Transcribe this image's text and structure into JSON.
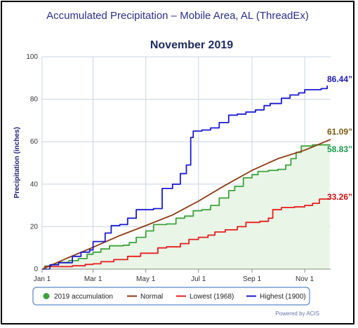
{
  "chart_data": {
    "type": "line",
    "title": "Accumulated Precipitation – Mobile Area, AL (ThreadEx)",
    "subtitle": "November 2019",
    "ylabel": "Precipitation (inches)",
    "xlabel": "",
    "ylim": [
      0,
      100
    ],
    "yticks": [
      "0",
      "20",
      "40",
      "60",
      "80",
      "100"
    ],
    "xticks": [
      "Jan 1",
      "Mar 1",
      "May 1",
      "Jul 1",
      "Sep 1",
      "Nov 1"
    ],
    "grid": true,
    "legend_position": "bottom",
    "credits": "Powered by ACIS",
    "series": [
      {
        "name": "2019 accumulation",
        "color": "#3aa33a",
        "fill": "#e9f5e6",
        "step": true,
        "end_label": "58.83”",
        "end_label_color": "#1a9a4a",
        "points": [
          [
            "2019-01-01",
            0
          ],
          [
            "2019-01-04",
            1.5
          ],
          [
            "2019-01-12",
            2.2
          ],
          [
            "2019-01-20",
            3.2
          ],
          [
            "2019-02-01",
            4.0
          ],
          [
            "2019-02-12",
            5.0
          ],
          [
            "2019-02-22",
            7.0
          ],
          [
            "2019-03-01",
            8.0
          ],
          [
            "2019-03-10",
            9.5
          ],
          [
            "2019-03-20",
            11.0
          ],
          [
            "2019-04-05",
            11.3
          ],
          [
            "2019-04-12",
            12.5
          ],
          [
            "2019-04-20",
            15.0
          ],
          [
            "2019-05-01",
            18.0
          ],
          [
            "2019-05-10",
            21.0
          ],
          [
            "2019-05-25",
            21.3
          ],
          [
            "2019-06-05",
            24.0
          ],
          [
            "2019-06-15",
            25.0
          ],
          [
            "2019-06-25",
            27.5
          ],
          [
            "2019-07-05",
            28.0
          ],
          [
            "2019-07-15",
            30.0
          ],
          [
            "2019-07-25",
            33.5
          ],
          [
            "2019-08-05",
            37.0
          ],
          [
            "2019-08-12",
            39.0
          ],
          [
            "2019-08-22",
            43.0
          ],
          [
            "2019-09-01",
            44.5
          ],
          [
            "2019-09-08",
            46.0
          ],
          [
            "2019-09-20",
            46.5
          ],
          [
            "2019-10-01",
            47.0
          ],
          [
            "2019-10-10",
            49.0
          ],
          [
            "2019-10-16",
            52.0
          ],
          [
            "2019-10-22",
            55.0
          ],
          [
            "2019-10-28",
            58.0
          ],
          [
            "2019-11-10",
            58.5
          ],
          [
            "2019-11-30",
            58.83
          ]
        ]
      },
      {
        "name": "Normal",
        "color": "#8b3a10",
        "fill": "none",
        "step": false,
        "end_label": "61.09”",
        "end_label_color": "#7a5a10",
        "points": [
          [
            "2019-01-01",
            0
          ],
          [
            "2019-02-01",
            5.5
          ],
          [
            "2019-03-01",
            10.3
          ],
          [
            "2019-04-01",
            15.8
          ],
          [
            "2019-05-01",
            20.5
          ],
          [
            "2019-06-01",
            25.5
          ],
          [
            "2019-07-01",
            32.0
          ],
          [
            "2019-08-01",
            39.5
          ],
          [
            "2019-09-01",
            46.5
          ],
          [
            "2019-10-01",
            52.0
          ],
          [
            "2019-11-01",
            56.0
          ],
          [
            "2019-12-01",
            61.09
          ]
        ]
      },
      {
        "name": "Lowest (1968)",
        "color": "#e81d1d",
        "fill": "none",
        "step": true,
        "end_label": "33.26”",
        "end_label_color": "#d01010",
        "points": [
          [
            "2019-01-01",
            0
          ],
          [
            "2019-01-05",
            1.2
          ],
          [
            "2019-02-05",
            1.6
          ],
          [
            "2019-02-20",
            2.2
          ],
          [
            "2019-03-01",
            2.5
          ],
          [
            "2019-03-10",
            3.5
          ],
          [
            "2019-03-25",
            4.5
          ],
          [
            "2019-04-10",
            6.0
          ],
          [
            "2019-04-25",
            7.5
          ],
          [
            "2019-05-15",
            10.0
          ],
          [
            "2019-05-25",
            10.5
          ],
          [
            "2019-06-10",
            12.0
          ],
          [
            "2019-06-20",
            14.0
          ],
          [
            "2019-07-01",
            15.0
          ],
          [
            "2019-07-12",
            16.0
          ],
          [
            "2019-07-20",
            17.5
          ],
          [
            "2019-08-01",
            18.5
          ],
          [
            "2019-08-15",
            20.0
          ],
          [
            "2019-08-25",
            22.0
          ],
          [
            "2019-09-10",
            22.5
          ],
          [
            "2019-09-20",
            24.0
          ],
          [
            "2019-09-25",
            28.0
          ],
          [
            "2019-10-05",
            29.0
          ],
          [
            "2019-10-20",
            29.3
          ],
          [
            "2019-11-01",
            30.0
          ],
          [
            "2019-11-10",
            31.0
          ],
          [
            "2019-11-18",
            33.0
          ],
          [
            "2019-11-30",
            33.26
          ]
        ]
      },
      {
        "name": "Highest (1900)",
        "color": "#1a1ad6",
        "fill": "none",
        "step": true,
        "end_label": "86.44”",
        "end_label_color": "#1a1ab8",
        "points": [
          [
            "2019-01-01",
            0
          ],
          [
            "2019-01-10",
            2.0
          ],
          [
            "2019-01-20",
            3.0
          ],
          [
            "2019-02-05",
            6.0
          ],
          [
            "2019-02-15",
            8.0
          ],
          [
            "2019-02-25",
            9.0
          ],
          [
            "2019-03-01",
            13.0
          ],
          [
            "2019-03-15",
            17.0
          ],
          [
            "2019-03-22",
            20.5
          ],
          [
            "2019-04-01",
            21.0
          ],
          [
            "2019-04-10",
            24.0
          ],
          [
            "2019-04-20",
            28.0
          ],
          [
            "2019-05-10",
            28.5
          ],
          [
            "2019-05-20",
            38.0
          ],
          [
            "2019-06-01",
            40.0
          ],
          [
            "2019-06-10",
            45.0
          ],
          [
            "2019-06-17",
            49.0
          ],
          [
            "2019-06-22",
            62.0
          ],
          [
            "2019-06-25",
            65.0
          ],
          [
            "2019-07-05",
            65.5
          ],
          [
            "2019-07-15",
            66.5
          ],
          [
            "2019-07-25",
            69.0
          ],
          [
            "2019-08-05",
            72.5
          ],
          [
            "2019-08-15",
            73.0
          ],
          [
            "2019-08-25",
            74.0
          ],
          [
            "2019-09-05",
            75.0
          ],
          [
            "2019-09-15",
            77.0
          ],
          [
            "2019-09-22",
            78.0
          ],
          [
            "2019-10-05",
            80.5
          ],
          [
            "2019-10-15",
            82.0
          ],
          [
            "2019-10-25",
            83.0
          ],
          [
            "2019-11-01",
            84.5
          ],
          [
            "2019-11-20",
            85.0
          ],
          [
            "2019-11-27",
            86.44
          ]
        ]
      }
    ]
  }
}
